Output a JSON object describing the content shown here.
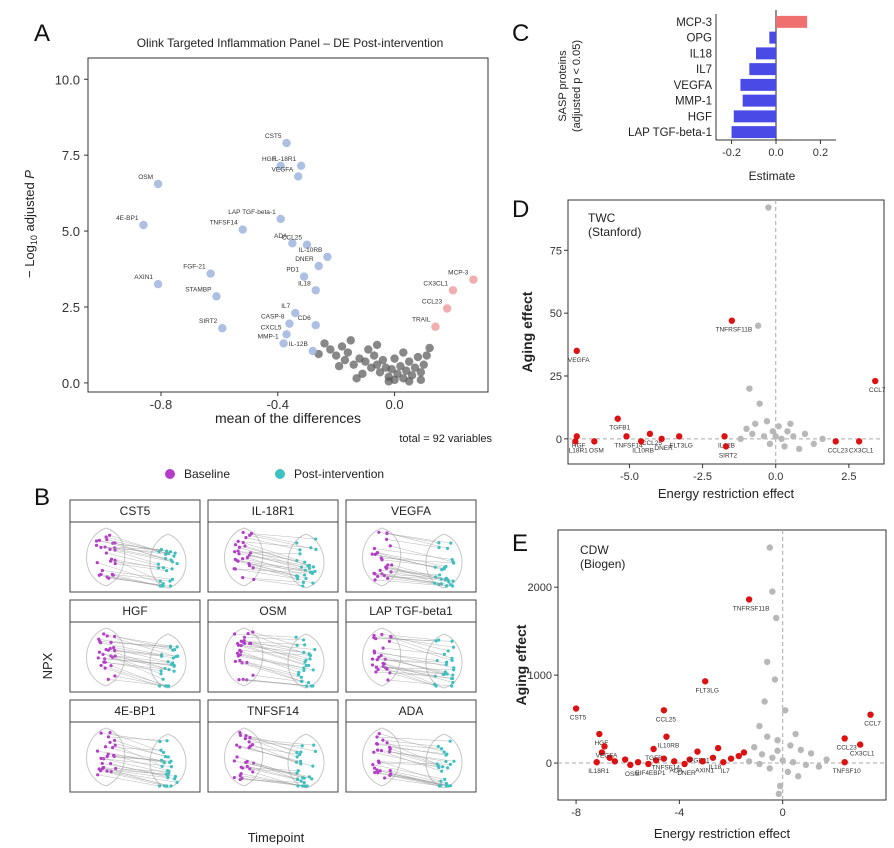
{
  "panel_letters": {
    "a": "A",
    "b": "B",
    "c": "C",
    "d": "D",
    "e": "E"
  },
  "colors": {
    "baseline": "#b43cc8",
    "post": "#3cc0c0",
    "volcano_left": "#9fb4dd",
    "volcano_right": "#f0a0a0",
    "volcano_ns": "#555555",
    "bar_neg": "#4a4ae6",
    "bar_pos": "#f07070",
    "sig_red": "#dd1111",
    "ns_grey": "#b8b8b8"
  },
  "panelA_footnote": "total = 92 variables",
  "panelB": {
    "legend": {
      "baseline": "Baseline",
      "post": "Post-intervention"
    },
    "ylabel": "NPX",
    "xlabel": "Timepoint",
    "facets": [
      "CST5",
      "IL-18R1",
      "VEGFA",
      "HGF",
      "OSM",
      "LAP TGF-beta1",
      "4E-BP1",
      "TNFSF14",
      "ADA"
    ]
  },
  "chart_data": [
    {
      "id": "A",
      "type": "scatter",
      "title": "Olink Targeted Inflammation Panel – DE Post-intervention",
      "xlabel": "mean of the differences",
      "ylabel": "− Log10 adjusted P",
      "xlim": [
        -1.05,
        0.32
      ],
      "ylim": [
        -0.3,
        10.7
      ],
      "xticks": [
        -0.8,
        -0.4,
        0.0
      ],
      "yticks": [
        0.0,
        2.5,
        5.0,
        7.5,
        10.0
      ],
      "labeled_points": [
        {
          "label": "CST5",
          "x": -0.37,
          "y": 7.9,
          "group": "down"
        },
        {
          "label": "HGF",
          "x": -0.39,
          "y": 7.15,
          "group": "down"
        },
        {
          "label": "IL-18R1",
          "x": -0.32,
          "y": 7.15,
          "group": "down"
        },
        {
          "label": "VEGFA",
          "x": -0.33,
          "y": 6.8,
          "group": "down"
        },
        {
          "label": "OSM",
          "x": -0.81,
          "y": 6.55,
          "group": "down"
        },
        {
          "label": "4E-BP1",
          "x": -0.86,
          "y": 5.2,
          "group": "down"
        },
        {
          "label": "LAP TGF-beta-1",
          "x": -0.39,
          "y": 5.4,
          "group": "down"
        },
        {
          "label": "TNFSF14",
          "x": -0.52,
          "y": 5.05,
          "group": "down"
        },
        {
          "label": "ADA",
          "x": -0.35,
          "y": 4.6,
          "group": "down"
        },
        {
          "label": "CCL25",
          "x": -0.3,
          "y": 4.55,
          "group": "down"
        },
        {
          "label": "IL-10RB",
          "x": -0.23,
          "y": 4.15,
          "group": "down"
        },
        {
          "label": "DNER",
          "x": -0.26,
          "y": 3.85,
          "group": "down"
        },
        {
          "label": "FGF-21",
          "x": -0.63,
          "y": 3.6,
          "group": "down"
        },
        {
          "label": "PD1",
          "x": -0.31,
          "y": 3.5,
          "group": "down"
        },
        {
          "label": "IL18",
          "x": -0.27,
          "y": 3.05,
          "group": "down"
        },
        {
          "label": "AXIN1",
          "x": -0.81,
          "y": 3.25,
          "group": "down"
        },
        {
          "label": "STAMBP",
          "x": -0.61,
          "y": 2.85,
          "group": "down"
        },
        {
          "label": "IL7",
          "x": -0.34,
          "y": 2.3,
          "group": "down"
        },
        {
          "label": "CASP-8",
          "x": -0.36,
          "y": 1.95,
          "group": "down"
        },
        {
          "label": "CD6",
          "x": -0.27,
          "y": 1.9,
          "group": "down"
        },
        {
          "label": "CXCL5",
          "x": -0.37,
          "y": 1.6,
          "group": "down"
        },
        {
          "label": "SIRT2",
          "x": -0.59,
          "y": 1.8,
          "group": "down"
        },
        {
          "label": "MMP-1",
          "x": -0.38,
          "y": 1.3,
          "group": "down"
        },
        {
          "label": "IL-12B",
          "x": -0.28,
          "y": 1.05,
          "group": "down"
        },
        {
          "label": "MCP-3",
          "x": 0.27,
          "y": 3.4,
          "group": "up"
        },
        {
          "label": "CX3CL1",
          "x": 0.2,
          "y": 3.05,
          "group": "up"
        },
        {
          "label": "CCL23",
          "x": 0.18,
          "y": 2.45,
          "group": "up"
        },
        {
          "label": "TRAIL",
          "x": 0.14,
          "y": 1.85,
          "group": "up"
        }
      ],
      "ns_points": [
        [
          -0.24,
          1.3
        ],
        [
          -0.22,
          1.1
        ],
        [
          -0.2,
          0.9
        ],
        [
          -0.18,
          1.2
        ],
        [
          -0.16,
          1.0
        ],
        [
          -0.14,
          0.6
        ],
        [
          -0.12,
          0.8
        ],
        [
          -0.1,
          0.7
        ],
        [
          -0.09,
          1.1
        ],
        [
          -0.08,
          0.5
        ],
        [
          -0.07,
          0.9
        ],
        [
          -0.06,
          0.6
        ],
        [
          -0.05,
          0.35
        ],
        [
          -0.04,
          0.75
        ],
        [
          -0.03,
          0.5
        ],
        [
          -0.02,
          0.2
        ],
        [
          -0.01,
          0.45
        ],
        [
          0.0,
          0.1
        ],
        [
          0.01,
          0.3
        ],
        [
          0.02,
          0.55
        ],
        [
          0.03,
          0.15
        ],
        [
          0.04,
          0.4
        ],
        [
          0.05,
          0.7
        ],
        [
          0.06,
          0.25
        ],
        [
          0.07,
          0.5
        ],
        [
          0.08,
          0.85
        ],
        [
          0.09,
          0.35
        ],
        [
          0.1,
          0.6
        ],
        [
          0.11,
          0.9
        ],
        [
          0.12,
          1.15
        ],
        [
          -0.26,
          0.95
        ],
        [
          -0.19,
          0.55
        ],
        [
          -0.15,
          1.4
        ],
        [
          -0.11,
          0.3
        ],
        [
          -0.06,
          1.25
        ],
        [
          0.0,
          0.8
        ],
        [
          0.03,
          1.0
        ],
        [
          -0.02,
          0.05
        ],
        [
          0.05,
          0.05
        ],
        [
          -0.13,
          0.15
        ],
        [
          0.09,
          0.1
        ],
        [
          -0.17,
          0.75
        ]
      ]
    },
    {
      "id": "C",
      "type": "bar",
      "orientation": "horizontal",
      "categories": [
        "MCP-3",
        "OPG",
        "IL18",
        "IL7",
        "VEGFA",
        "MMP-1",
        "HGF",
        "LAP TGF-beta-1"
      ],
      "values": [
        0.14,
        -0.03,
        -0.09,
        -0.12,
        -0.16,
        -0.15,
        -0.19,
        -0.2
      ],
      "xlabel": "Estimate",
      "ylabel": "SASP proteins (adjusted p < 0.05)",
      "ylabel_line1": "SASP proteins",
      "ylabel_line2": "(adjusted p < 0.05)",
      "xlim": [
        -0.27,
        0.27
      ],
      "xticks": [
        "-0.2",
        "0.0",
        "0.2"
      ],
      "xtick_values": [
        -0.2,
        0.0,
        0.2
      ]
    },
    {
      "id": "D",
      "type": "scatter",
      "annotation_title": "TWC",
      "annotation_subtitle": "(Stanford)",
      "xlabel": "Energy restriction effect",
      "ylabel": "Aging effect",
      "xlim": [
        -7.1,
        3.7
      ],
      "ylim": [
        -10,
        95
      ],
      "xticks": [
        -5.0,
        -2.5,
        0.0,
        2.5
      ],
      "xtick_labels": [
        "-5.0",
        "-2.5",
        "0.0",
        "2.5"
      ],
      "yticks": [
        0,
        25,
        50,
        75
      ],
      "labeled_points": [
        {
          "label": "VEGFA",
          "x": -6.8,
          "y": 35
        },
        {
          "label": "TNFRSF11B",
          "x": -1.5,
          "y": 47
        },
        {
          "label": "TGFB1",
          "x": -5.4,
          "y": 8
        },
        {
          "label": "HGF",
          "x": -6.8,
          "y": 1
        },
        {
          "label": "IL18R1",
          "x": -6.85,
          "y": -1
        },
        {
          "label": "OSM",
          "x": -6.2,
          "y": -1
        },
        {
          "label": "TNFSF14",
          "x": -5.1,
          "y": 1
        },
        {
          "label": "CCL25",
          "x": -4.3,
          "y": 2
        },
        {
          "label": "IL10RB",
          "x": -4.6,
          "y": -1
        },
        {
          "label": "DNER",
          "x": -3.9,
          "y": 0
        },
        {
          "label": "FLT3LG",
          "x": -3.3,
          "y": 1
        },
        {
          "label": "IL12B",
          "x": -1.75,
          "y": 1
        },
        {
          "label": "SIRT2",
          "x": -1.7,
          "y": -3
        },
        {
          "label": "CCL7",
          "x": 3.4,
          "y": 23
        },
        {
          "label": "CX3CL1",
          "x": 2.85,
          "y": -1
        },
        {
          "label": "CCL23",
          "x": 2.05,
          "y": -1
        }
      ],
      "ns_points": [
        [
          -0.25,
          92
        ],
        [
          -0.6,
          45
        ],
        [
          -0.9,
          20
        ],
        [
          -0.55,
          14
        ],
        [
          -0.3,
          7
        ],
        [
          0.1,
          5
        ],
        [
          0.4,
          3
        ],
        [
          -1.0,
          4
        ],
        [
          -0.8,
          2
        ],
        [
          -0.4,
          1
        ],
        [
          0.2,
          0
        ],
        [
          0.6,
          1
        ],
        [
          1.0,
          2
        ],
        [
          -0.2,
          -2
        ],
        [
          0.3,
          -3
        ],
        [
          0.8,
          -4
        ],
        [
          1.3,
          -2
        ],
        [
          -1.2,
          0
        ],
        [
          0.0,
          1
        ],
        [
          0.5,
          6
        ],
        [
          -0.7,
          6
        ],
        [
          1.6,
          0
        ],
        [
          -0.1,
          3
        ]
      ]
    },
    {
      "id": "E",
      "type": "scatter",
      "annotation_title": "CDW",
      "annotation_subtitle": "(Biogen)",
      "xlabel": "Energy restriction effect",
      "ylabel": "Aging effect",
      "xlim": [
        -8.7,
        4.0
      ],
      "ylim": [
        -420,
        2650
      ],
      "xticks": [
        -8,
        -4,
        0
      ],
      "yticks": [
        0,
        1000,
        2000
      ],
      "labeled_points": [
        {
          "label": "CST5",
          "x": -8.0,
          "y": 620
        },
        {
          "label": "HGF",
          "x": -7.1,
          "y": 330
        },
        {
          "label": "VEGFA",
          "x": -6.9,
          "y": 190
        },
        {
          "label": "IL18R1",
          "x": -7.2,
          "y": 10
        },
        {
          "label": "OSM",
          "x": -5.9,
          "y": -20
        },
        {
          "label": "TGFB1",
          "x": -5.0,
          "y": 160
        },
        {
          "label": "TNFSF14",
          "x": -4.6,
          "y": 50
        },
        {
          "label": "EIF4EBP1",
          "x": -5.2,
          "y": -10
        },
        {
          "label": "ADA",
          "x": -4.2,
          "y": 20
        },
        {
          "label": "DNER",
          "x": -3.8,
          "y": -10
        },
        {
          "label": "FGF21",
          "x": -3.3,
          "y": 130
        },
        {
          "label": "IL10RB",
          "x": -4.5,
          "y": 300
        },
        {
          "label": "CCL25",
          "x": -4.6,
          "y": 600
        },
        {
          "label": "FLT3LG",
          "x": -3.0,
          "y": 930
        },
        {
          "label": "AXIN1",
          "x": -3.1,
          "y": 20
        },
        {
          "label": "IL18",
          "x": -2.7,
          "y": 60
        },
        {
          "label": "IL7",
          "x": -2.3,
          "y": 10
        },
        {
          "label": "TNFRSF11B",
          "x": -1.3,
          "y": 1860
        },
        {
          "label": "CCL7",
          "x": 3.4,
          "y": 550
        },
        {
          "label": "CCL23",
          "x": 2.4,
          "y": 280
        },
        {
          "label": "CX3CL1",
          "x": 3.0,
          "y": 210
        },
        {
          "label": "TNFSF10",
          "x": 2.4,
          "y": 10
        }
      ],
      "extra_sig_points": [
        [
          -6.5,
          20
        ],
        [
          -6.1,
          40
        ],
        [
          -5.6,
          10
        ],
        [
          -4.9,
          30
        ],
        [
          -2.0,
          50
        ],
        [
          -1.7,
          80
        ],
        [
          -1.5,
          120
        ],
        [
          -2.5,
          170
        ],
        [
          -3.6,
          40
        ],
        [
          -6.7,
          60
        ],
        [
          -7.0,
          120
        ]
      ],
      "ns_points": [
        [
          -0.5,
          2450
        ],
        [
          -0.4,
          1950
        ],
        [
          -0.25,
          1650
        ],
        [
          -0.6,
          1150
        ],
        [
          -0.3,
          950
        ],
        [
          0.1,
          600
        ],
        [
          -0.9,
          420
        ],
        [
          -0.6,
          300
        ],
        [
          -0.2,
          260
        ],
        [
          0.3,
          200
        ],
        [
          0.7,
          150
        ],
        [
          1.1,
          110
        ],
        [
          -1.1,
          180
        ],
        [
          -0.8,
          100
        ],
        [
          -0.4,
          60
        ],
        [
          0.0,
          30
        ],
        [
          0.4,
          10
        ],
        [
          0.9,
          -20
        ],
        [
          1.4,
          -40
        ],
        [
          -1.3,
          20
        ],
        [
          -0.9,
          -10
        ],
        [
          -0.5,
          -60
        ],
        [
          0.2,
          -100
        ],
        [
          0.6,
          -150
        ],
        [
          -0.1,
          -260
        ],
        [
          1.7,
          40
        ],
        [
          -0.2,
          140
        ],
        [
          0.5,
          330
        ],
        [
          -0.7,
          700
        ],
        [
          -0.15,
          -350
        ]
      ]
    }
  ]
}
